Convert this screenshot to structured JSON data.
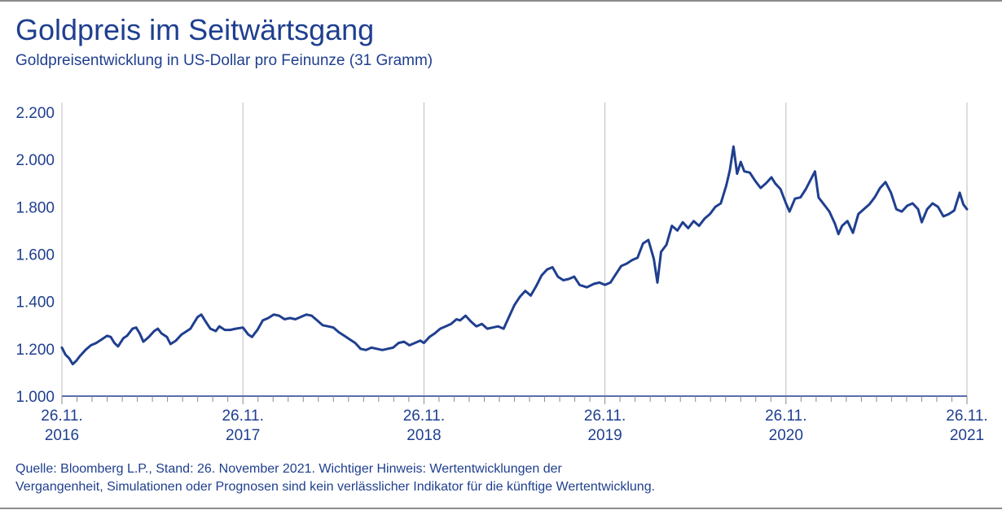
{
  "chart_data": {
    "type": "line",
    "title": "Goldpreis im Seitwärtsgang",
    "subtitle": "Goldpreisentwicklung in US-Dollar pro Feinunze (31 Gramm)",
    "xlabel": "",
    "ylabel": "",
    "ylim": [
      1000,
      2200
    ],
    "y_ticks": [
      "2.200",
      "2.000",
      "1.800",
      "1.600",
      "1.400",
      "1.200",
      "1.000"
    ],
    "y_tick_values": [
      2200,
      2000,
      1800,
      1600,
      1400,
      1200,
      1000
    ],
    "x_ticks": [
      {
        "date": "26.11.",
        "year": "2016"
      },
      {
        "date": "26.11.",
        "year": "2017"
      },
      {
        "date": "26.11.",
        "year": "2018"
      },
      {
        "date": "26.11.",
        "year": "2019"
      },
      {
        "date": "26.11.",
        "year": "2020"
      },
      {
        "date": "26.11.",
        "year": "2021"
      }
    ],
    "x_range": [
      2016.9,
      2021.9
    ],
    "grid": true,
    "series": [
      {
        "name": "Goldpreis",
        "color": "#1f3f8f",
        "points": [
          [
            2016.9,
            1205
          ],
          [
            2016.92,
            1175
          ],
          [
            2016.94,
            1160
          ],
          [
            2016.96,
            1135
          ],
          [
            2016.98,
            1150
          ],
          [
            2017.0,
            1170
          ],
          [
            2017.03,
            1195
          ],
          [
            2017.06,
            1215
          ],
          [
            2017.09,
            1225
          ],
          [
            2017.12,
            1240
          ],
          [
            2017.15,
            1255
          ],
          [
            2017.17,
            1250
          ],
          [
            2017.19,
            1225
          ],
          [
            2017.21,
            1210
          ],
          [
            2017.24,
            1245
          ],
          [
            2017.26,
            1255
          ],
          [
            2017.29,
            1285
          ],
          [
            2017.31,
            1290
          ],
          [
            2017.33,
            1265
          ],
          [
            2017.35,
            1230
          ],
          [
            2017.38,
            1250
          ],
          [
            2017.41,
            1275
          ],
          [
            2017.43,
            1285
          ],
          [
            2017.45,
            1265
          ],
          [
            2017.48,
            1250
          ],
          [
            2017.5,
            1220
          ],
          [
            2017.53,
            1235
          ],
          [
            2017.56,
            1260
          ],
          [
            2017.58,
            1270
          ],
          [
            2017.61,
            1285
          ],
          [
            2017.63,
            1310
          ],
          [
            2017.65,
            1335
          ],
          [
            2017.67,
            1345
          ],
          [
            2017.69,
            1320
          ],
          [
            2017.72,
            1285
          ],
          [
            2017.75,
            1275
          ],
          [
            2017.77,
            1295
          ],
          [
            2017.8,
            1280
          ],
          [
            2017.83,
            1280
          ],
          [
            2017.86,
            1285
          ],
          [
            2017.9,
            1290
          ],
          [
            2017.93,
            1260
          ],
          [
            2017.95,
            1250
          ],
          [
            2017.98,
            1280
          ],
          [
            2018.01,
            1320
          ],
          [
            2018.04,
            1330
          ],
          [
            2018.07,
            1345
          ],
          [
            2018.1,
            1340
          ],
          [
            2018.13,
            1325
          ],
          [
            2018.16,
            1330
          ],
          [
            2018.19,
            1325
          ],
          [
            2018.22,
            1335
          ],
          [
            2018.25,
            1345
          ],
          [
            2018.28,
            1340
          ],
          [
            2018.31,
            1320
          ],
          [
            2018.34,
            1300
          ],
          [
            2018.37,
            1295
          ],
          [
            2018.4,
            1290
          ],
          [
            2018.43,
            1270
          ],
          [
            2018.46,
            1255
          ],
          [
            2018.49,
            1240
          ],
          [
            2018.52,
            1225
          ],
          [
            2018.55,
            1200
          ],
          [
            2018.58,
            1195
          ],
          [
            2018.61,
            1205
          ],
          [
            2018.64,
            1200
          ],
          [
            2018.67,
            1195
          ],
          [
            2018.7,
            1200
          ],
          [
            2018.73,
            1205
          ],
          [
            2018.76,
            1225
          ],
          [
            2018.79,
            1230
          ],
          [
            2018.82,
            1215
          ],
          [
            2018.85,
            1225
          ],
          [
            2018.88,
            1235
          ],
          [
            2018.9,
            1225
          ],
          [
            2018.93,
            1250
          ],
          [
            2018.96,
            1265
          ],
          [
            2018.99,
            1285
          ],
          [
            2019.02,
            1295
          ],
          [
            2019.05,
            1305
          ],
          [
            2019.08,
            1325
          ],
          [
            2019.1,
            1320
          ],
          [
            2019.13,
            1340
          ],
          [
            2019.16,
            1315
          ],
          [
            2019.19,
            1295
          ],
          [
            2019.22,
            1305
          ],
          [
            2019.25,
            1285
          ],
          [
            2019.28,
            1290
          ],
          [
            2019.31,
            1295
          ],
          [
            2019.34,
            1285
          ],
          [
            2019.37,
            1335
          ],
          [
            2019.4,
            1385
          ],
          [
            2019.43,
            1420
          ],
          [
            2019.46,
            1445
          ],
          [
            2019.49,
            1425
          ],
          [
            2019.52,
            1465
          ],
          [
            2019.55,
            1510
          ],
          [
            2019.58,
            1535
          ],
          [
            2019.61,
            1545
          ],
          [
            2019.64,
            1505
          ],
          [
            2019.67,
            1490
          ],
          [
            2019.7,
            1495
          ],
          [
            2019.73,
            1505
          ],
          [
            2019.76,
            1470
          ],
          [
            2019.8,
            1460
          ],
          [
            2019.84,
            1475
          ],
          [
            2019.87,
            1480
          ],
          [
            2019.9,
            1470
          ],
          [
            2019.93,
            1480
          ],
          [
            2019.96,
            1515
          ],
          [
            2019.99,
            1550
          ],
          [
            2020.02,
            1560
          ],
          [
            2020.05,
            1575
          ],
          [
            2020.08,
            1585
          ],
          [
            2020.11,
            1645
          ],
          [
            2020.14,
            1660
          ],
          [
            2020.17,
            1580
          ],
          [
            2020.19,
            1480
          ],
          [
            2020.21,
            1610
          ],
          [
            2020.24,
            1640
          ],
          [
            2020.27,
            1720
          ],
          [
            2020.3,
            1700
          ],
          [
            2020.33,
            1735
          ],
          [
            2020.36,
            1710
          ],
          [
            2020.39,
            1740
          ],
          [
            2020.42,
            1720
          ],
          [
            2020.45,
            1750
          ],
          [
            2020.48,
            1770
          ],
          [
            2020.51,
            1800
          ],
          [
            2020.54,
            1815
          ],
          [
            2020.57,
            1890
          ],
          [
            2020.59,
            1955
          ],
          [
            2020.61,
            2055
          ],
          [
            2020.63,
            1940
          ],
          [
            2020.65,
            1990
          ],
          [
            2020.67,
            1950
          ],
          [
            2020.7,
            1945
          ],
          [
            2020.73,
            1910
          ],
          [
            2020.76,
            1880
          ],
          [
            2020.79,
            1900
          ],
          [
            2020.82,
            1925
          ],
          [
            2020.84,
            1900
          ],
          [
            2020.87,
            1875
          ],
          [
            2020.9,
            1815
          ],
          [
            2020.92,
            1780
          ],
          [
            2020.95,
            1835
          ],
          [
            2020.98,
            1840
          ],
          [
            2021.01,
            1875
          ],
          [
            2021.04,
            1920
          ],
          [
            2021.06,
            1950
          ],
          [
            2021.08,
            1840
          ],
          [
            2021.11,
            1810
          ],
          [
            2021.14,
            1780
          ],
          [
            2021.17,
            1730
          ],
          [
            2021.19,
            1685
          ],
          [
            2021.21,
            1720
          ],
          [
            2021.24,
            1740
          ],
          [
            2021.27,
            1690
          ],
          [
            2021.3,
            1770
          ],
          [
            2021.33,
            1790
          ],
          [
            2021.36,
            1810
          ],
          [
            2021.39,
            1840
          ],
          [
            2021.42,
            1880
          ],
          [
            2021.45,
            1905
          ],
          [
            2021.48,
            1860
          ],
          [
            2021.51,
            1790
          ],
          [
            2021.54,
            1780
          ],
          [
            2021.57,
            1805
          ],
          [
            2021.6,
            1815
          ],
          [
            2021.63,
            1790
          ],
          [
            2021.65,
            1735
          ],
          [
            2021.68,
            1790
          ],
          [
            2021.71,
            1815
          ],
          [
            2021.74,
            1800
          ],
          [
            2021.77,
            1760
          ],
          [
            2021.8,
            1770
          ],
          [
            2021.83,
            1785
          ],
          [
            2021.86,
            1860
          ],
          [
            2021.88,
            1810
          ],
          [
            2021.9,
            1790
          ]
        ]
      }
    ]
  },
  "footer": {
    "source_line1": "Quelle: Bloomberg L.P., Stand: 26. November 2021. Wichtiger Hinweis: Wertentwicklungen der",
    "source_line2": "Vergangenheit, Simulationen oder Prognosen sind kein verlässlicher Indikator für die künftige Wertentwicklung."
  }
}
